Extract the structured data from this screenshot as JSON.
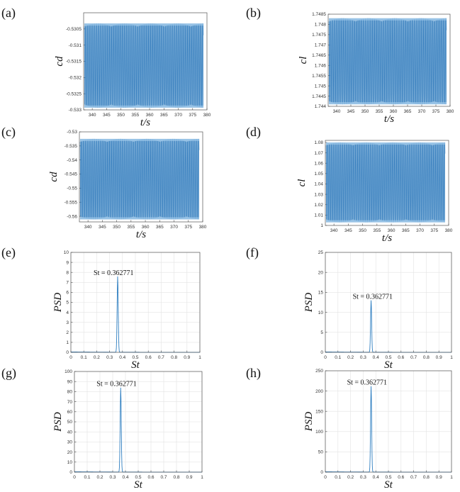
{
  "chart_data": [
    {
      "panel": "(a)",
      "type": "line",
      "xlabel": "t/s",
      "ylabel": "cd",
      "xlim": [
        337,
        380
      ],
      "ylim": [
        -0.533,
        -0.53
      ],
      "xticks": [
        "340",
        "345",
        "350",
        "355",
        "360",
        "365",
        "370",
        "375",
        "380"
      ],
      "yticks": [
        "-0.5305",
        "-0.531",
        "-0.5315",
        "-0.532",
        "-0.5325",
        "-0.533"
      ],
      "signal": {
        "center": -0.53163,
        "amplitude": 0.0013,
        "period": 2.757
      },
      "color": "#2f7fc1"
    },
    {
      "panel": "(b)",
      "type": "line",
      "xlabel": "t/s",
      "ylabel": "cl",
      "xlim": [
        337,
        380
      ],
      "ylim": [
        1.744,
        1.7485
      ],
      "xticks": [
        "340",
        "345",
        "350",
        "355",
        "360",
        "365",
        "370",
        "375",
        "380"
      ],
      "yticks": [
        "1.7485",
        "1.748",
        "1.7475",
        "1.747",
        "1.7465",
        "1.746",
        "1.7455",
        "1.745",
        "1.7445",
        "1.744"
      ],
      "signal": {
        "center": 1.7462,
        "amplitude": 0.0021,
        "period": 2.757
      },
      "color": "#2f7fc1"
    },
    {
      "panel": "(c)",
      "type": "line",
      "xlabel": "t/s",
      "ylabel": "cd",
      "xlim": [
        337,
        380
      ],
      "ylim": [
        -0.562,
        -0.53
      ],
      "xticks": [
        "340",
        "345",
        "350",
        "355",
        "360",
        "365",
        "370",
        "375",
        "380"
      ],
      "yticks": [
        "-0.53",
        "-0.535",
        "-0.54",
        "-0.545",
        "-0.55",
        "-0.555",
        "-0.56"
      ],
      "signal": {
        "center": -0.5468,
        "amplitude": 0.0143,
        "period": 2.757
      },
      "color": "#2f7fc1"
    },
    {
      "panel": "(d)",
      "type": "line",
      "xlabel": "t/s",
      "ylabel": "cl",
      "xlim": [
        337,
        380
      ],
      "ylim": [
        1.0,
        1.082
      ],
      "xticks": [
        "340",
        "345",
        "350",
        "355",
        "360",
        "365",
        "370",
        "375",
        "380"
      ],
      "yticks": [
        "1.08",
        "1.07",
        "1.06",
        "1.05",
        "1.04",
        "1.03",
        "1.02",
        "1.01",
        "1"
      ],
      "signal": {
        "center": 1.0415,
        "amplitude": 0.0385,
        "period": 2.757
      },
      "color": "#2f7fc1"
    },
    {
      "panel": "(e)",
      "type": "line",
      "xlabel": "St",
      "ylabel": "PSD",
      "xlim": [
        0,
        1
      ],
      "ylim": [
        0,
        10
      ],
      "xticks": [
        "0",
        "0.1",
        "0.2",
        "0.3",
        "0.4",
        "0.5",
        "0.6",
        "0.7",
        "0.8",
        "0.9",
        "1"
      ],
      "yticks": [
        "0",
        "1",
        "2",
        "3",
        "4",
        "5",
        "6",
        "7",
        "8",
        "9",
        "10"
      ],
      "peak": {
        "x": 0.362771,
        "y": 7.6
      },
      "annotation": "St = 0.362771",
      "color": "#2f7fc1"
    },
    {
      "panel": "(f)",
      "type": "line",
      "xlabel": "St",
      "ylabel": "PSD",
      "xlim": [
        0,
        1
      ],
      "ylim": [
        0,
        25
      ],
      "xticks": [
        "0",
        "0.1",
        "0.2",
        "0.3",
        "0.4",
        "0.5",
        "0.6",
        "0.7",
        "0.8",
        "0.9",
        "1"
      ],
      "yticks": [
        "0",
        "5",
        "10",
        "15",
        "20",
        "25"
      ],
      "peak": {
        "x": 0.362771,
        "y": 13
      },
      "annotation": "St = 0.362771",
      "color": "#2f7fc1"
    },
    {
      "panel": "(g)",
      "type": "line",
      "xlabel": "St",
      "ylabel": "PSD",
      "xlim": [
        0,
        1
      ],
      "ylim": [
        0,
        100
      ],
      "xticks": [
        "0",
        "0.1",
        "0.2",
        "0.3",
        "0.4",
        "0.5",
        "0.6",
        "0.7",
        "0.8",
        "0.9",
        "1"
      ],
      "yticks": [
        "0",
        "10",
        "20",
        "30",
        "40",
        "50",
        "60",
        "70",
        "80",
        "90",
        "100"
      ],
      "peak": {
        "x": 0.362771,
        "y": 84
      },
      "annotation": "St = 0.362771",
      "color": "#2f7fc1"
    },
    {
      "panel": "(h)",
      "type": "line",
      "xlabel": "St",
      "ylabel": "PSD",
      "xlim": [
        0,
        1
      ],
      "ylim": [
        0,
        250
      ],
      "xticks": [
        "0",
        "0.1",
        "0.2",
        "0.3",
        "0.4",
        "0.5",
        "0.6",
        "0.7",
        "0.8",
        "0.9",
        "1"
      ],
      "yticks": [
        "0",
        "50",
        "100",
        "150",
        "200",
        "250"
      ],
      "peak": {
        "x": 0.362771,
        "y": 212
      },
      "annotation": "St = 0.362771",
      "color": "#2f7fc1"
    }
  ]
}
